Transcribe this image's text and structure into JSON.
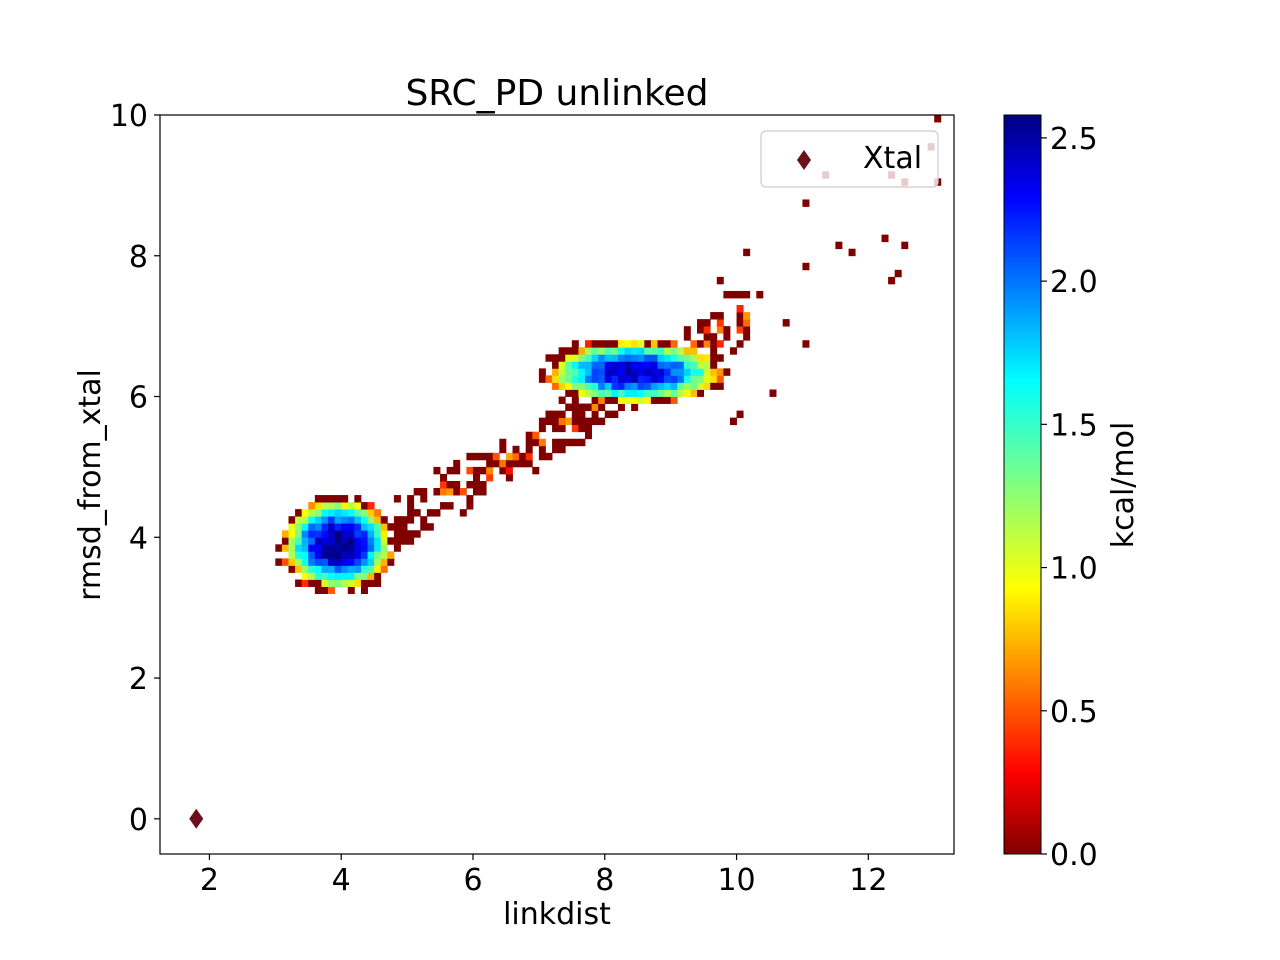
{
  "chart_data": {
    "type": "heatmap",
    "title": "SRC_PD unlinked",
    "xlabel": "linkdist",
    "ylabel": "rmsd_from_xtal",
    "xlim": [
      1.25,
      13.3
    ],
    "ylim": [
      -0.5,
      10.0
    ],
    "xticks": [
      2,
      4,
      6,
      8,
      10,
      12
    ],
    "yticks": [
      0,
      2,
      4,
      6,
      8,
      10
    ],
    "colorbar": {
      "label": "kcal/mol",
      "range": [
        0.0,
        2.58
      ],
      "ticks": [
        "0.0",
        "0.5",
        "1.0",
        "1.5",
        "2.0",
        "2.5"
      ],
      "colormap": "jet"
    },
    "legend": {
      "position": "top-right",
      "entries": [
        "Xtal"
      ]
    },
    "marker": {
      "name": "Xtal",
      "x": 1.8,
      "y": 0.0,
      "shape": "diamond",
      "color": "#6b0f1a"
    },
    "bin_size": {
      "x": 0.1,
      "y": 0.1
    },
    "basins": [
      {
        "x": 3.95,
        "y": 3.9,
        "sx": 0.55,
        "sy": 0.42,
        "depth": 0.0
      },
      {
        "x": 8.45,
        "y": 6.35,
        "sx": 0.9,
        "sy": 0.3,
        "depth": 0.15
      }
    ]
  }
}
